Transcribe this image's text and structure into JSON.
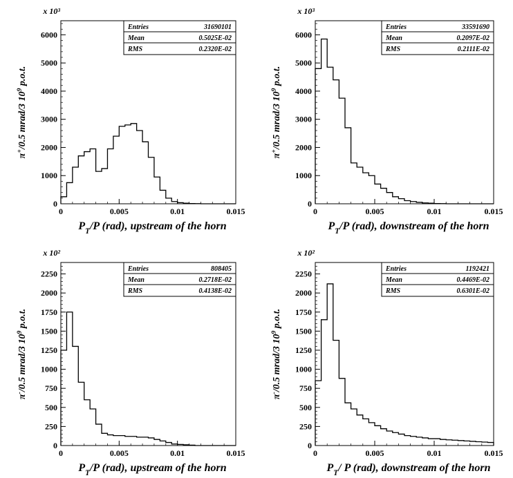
{
  "chart_data": [
    {
      "type": "histogram",
      "xlabel": "P_T/P (rad), upstream of the horn",
      "ylabel": "π⁺/0.5 mrad/3 10⁹ p.o.t.",
      "exponent_label": "x 10³",
      "xlim": [
        0,
        0.015
      ],
      "ylim": [
        0,
        6500
      ],
      "xticks": [
        0,
        0.005,
        0.01,
        0.015
      ],
      "xtick_labels": [
        "0",
        "0.005",
        "0.01",
        "0.015"
      ],
      "yticks": [
        0,
        1000,
        2000,
        3000,
        4000,
        5000,
        6000
      ],
      "ytick_labels": [
        "0",
        "1000",
        "2000",
        "3000",
        "4000",
        "5000",
        "6000"
      ],
      "bin_width": 0.0005,
      "values": [
        250,
        750,
        1300,
        1700,
        1850,
        1950,
        1150,
        1250,
        1950,
        2400,
        2750,
        2800,
        2850,
        2600,
        2200,
        1650,
        950,
        480,
        200,
        80,
        40,
        20,
        10,
        5,
        0,
        0,
        0,
        0,
        0,
        0
      ],
      "stats": {
        "entries_label": "Entries",
        "entries": "31690101",
        "mean_label": "Mean",
        "mean": "0.5025E-02",
        "rms_label": "RMS",
        "rms": "0.2320E-02"
      }
    },
    {
      "type": "histogram",
      "xlabel": "P_T/P (rad), downstream of the horn",
      "ylabel": "π⁺/0.5 mrad/3 10⁹ p.o.t.",
      "exponent_label": "x 10³",
      "xlim": [
        0,
        0.015
      ],
      "ylim": [
        0,
        6500
      ],
      "xticks": [
        0,
        0.005,
        0.01,
        0.015
      ],
      "xtick_labels": [
        "0",
        "0.005",
        "0.01",
        "0.015"
      ],
      "yticks": [
        0,
        1000,
        2000,
        3000,
        4000,
        5000,
        6000
      ],
      "ytick_labels": [
        "0",
        "1000",
        "2000",
        "3000",
        "4000",
        "5000",
        "6000"
      ],
      "bin_width": 0.0005,
      "values": [
        4800,
        5850,
        4850,
        4400,
        3750,
        2700,
        1450,
        1300,
        1100,
        1000,
        700,
        550,
        400,
        250,
        180,
        110,
        80,
        50,
        30,
        20,
        10,
        5,
        0,
        0,
        0,
        0,
        0,
        0,
        0,
        0
      ],
      "stats": {
        "entries_label": "Entries",
        "entries": "33591690",
        "mean_label": "Mean",
        "mean": "0.2097E-02",
        "rms_label": "RMS",
        "rms": "0.2111E-02"
      }
    },
    {
      "type": "histogram",
      "xlabel": "P_T/P (rad), upstream of the horn",
      "ylabel": "π⁻/0.5 mrad/3 10⁹ p.o.t.",
      "exponent_label": "x 10²",
      "xlim": [
        0,
        0.015
      ],
      "ylim": [
        0,
        2400
      ],
      "xticks": [
        0,
        0.005,
        0.01,
        0.015
      ],
      "xtick_labels": [
        "0",
        "0.005",
        "0.01",
        "0.015"
      ],
      "yticks": [
        0,
        250,
        500,
        750,
        1000,
        1250,
        1500,
        1750,
        2000,
        2250
      ],
      "ytick_labels": [
        "0",
        "250",
        "500",
        "750",
        "1000",
        "1250",
        "1500",
        "1750",
        "2000",
        "2250"
      ],
      "bin_width": 0.0005,
      "values": [
        1250,
        1750,
        1300,
        830,
        600,
        480,
        280,
        160,
        140,
        130,
        130,
        120,
        120,
        110,
        110,
        100,
        80,
        60,
        40,
        20,
        15,
        10,
        5,
        0,
        0,
        0,
        0,
        0,
        0,
        0
      ],
      "stats": {
        "entries_label": "Entries",
        "entries": "808405",
        "mean_label": "Mean",
        "mean": "0.2718E-02",
        "rms_label": "RMS",
        "rms": "0.4138E-02"
      }
    },
    {
      "type": "histogram",
      "xlabel": "P_T/ P (rad), downstream of the horn",
      "ylabel": "π⁻/0.5 mrad/3 10⁹ p.o.t.",
      "exponent_label": "x 10²",
      "xlim": [
        0,
        0.015
      ],
      "ylim": [
        0,
        2400
      ],
      "xticks": [
        0,
        0.005,
        0.01,
        0.015
      ],
      "xtick_labels": [
        "0",
        "0.005",
        "0.01",
        "0.015"
      ],
      "yticks": [
        0,
        250,
        500,
        750,
        1000,
        1250,
        1500,
        1750,
        2000,
        2250
      ],
      "ytick_labels": [
        "0",
        "250",
        "500",
        "750",
        "1000",
        "1250",
        "1500",
        "1750",
        "2000",
        "2250"
      ],
      "bin_width": 0.0005,
      "values": [
        850,
        1650,
        2120,
        1380,
        880,
        560,
        480,
        400,
        350,
        300,
        260,
        220,
        190,
        170,
        150,
        130,
        120,
        110,
        100,
        90,
        90,
        80,
        75,
        70,
        65,
        60,
        55,
        50,
        45,
        40
      ],
      "stats": {
        "entries_label": "Entries",
        "entries": "1192421",
        "mean_label": "Mean",
        "mean": "0.4469E-02",
        "rms_label": "RMS",
        "rms": "0.6301E-02"
      }
    }
  ]
}
